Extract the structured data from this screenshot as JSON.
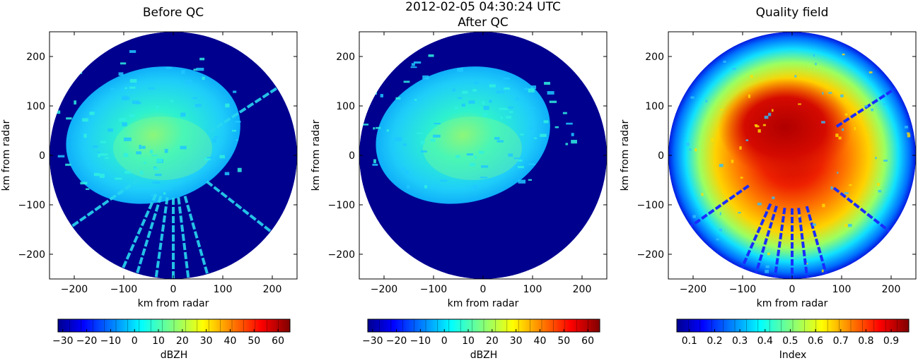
{
  "suptitle": "2012-02-05 04:30:24 UTC",
  "panels": [
    {
      "title": "Before QC",
      "xlabel": "km from radar",
      "ylabel": "km from radar",
      "xticks": [
        -200,
        -100,
        0,
        100,
        200
      ],
      "yticks": [
        200,
        100,
        0,
        -100,
        -200
      ],
      "xtick_labels": [
        "−200",
        "−100",
        "0",
        "100",
        "200"
      ],
      "ytick_labels": [
        "200",
        "100",
        "0",
        "−100",
        "−200"
      ],
      "colorbar": {
        "label": "dBZH",
        "ticks": [
          -30,
          -20,
          -10,
          0,
          10,
          20,
          30,
          40,
          50,
          60
        ],
        "tick_labels": [
          "−30",
          "−20",
          "−10",
          "0",
          "10",
          "20",
          "30",
          "40",
          "50",
          "60"
        ],
        "range": [
          -32,
          65
        ]
      }
    },
    {
      "title": "After QC",
      "xlabel": "km from radar",
      "ylabel": "km from radar",
      "xticks": [
        -200,
        -100,
        0,
        100,
        200
      ],
      "yticks": [
        200,
        100,
        0,
        -100,
        -200
      ],
      "xtick_labels": [
        "−200",
        "−100",
        "0",
        "100",
        "200"
      ],
      "ytick_labels": [
        "200",
        "100",
        "0",
        "−100",
        "−200"
      ],
      "colorbar": {
        "label": "dBZH",
        "ticks": [
          -30,
          -20,
          -10,
          0,
          10,
          20,
          30,
          40,
          50,
          60
        ],
        "tick_labels": [
          "−30",
          "−20",
          "−10",
          "0",
          "10",
          "20",
          "30",
          "40",
          "50",
          "60"
        ],
        "range": [
          -32,
          65
        ]
      }
    },
    {
      "title": "Quality field",
      "xlabel": "km from radar",
      "ylabel": "km from radar",
      "xticks": [
        -200,
        -100,
        0,
        100,
        200
      ],
      "yticks": [
        200,
        100,
        0,
        -100,
        -200
      ],
      "xtick_labels": [
        "−200",
        "−100",
        "0",
        "100",
        "200"
      ],
      "ytick_labels": [
        "200",
        "100",
        "0",
        "−100",
        "−200"
      ],
      "colorbar": {
        "label": "Index",
        "ticks": [
          0.1,
          0.2,
          0.3,
          0.4,
          0.5,
          0.6,
          0.7,
          0.8,
          0.9
        ],
        "tick_labels": [
          "0.1",
          "0.2",
          "0.3",
          "0.4",
          "0.5",
          "0.6",
          "0.7",
          "0.8",
          "0.9"
        ],
        "range": [
          0.05,
          0.97
        ]
      }
    }
  ],
  "chart_data": [
    {
      "type": "heatmap",
      "title": "Before QC",
      "xlabel": "km from radar",
      "ylabel": "km from radar",
      "xlim": [
        -250,
        250
      ],
      "ylim": [
        -250,
        250
      ],
      "radar_range_km": 250,
      "colormap": "jet",
      "colorbar_label": "dBZH",
      "colorbar_range": [
        -32,
        65
      ],
      "background_value": -32,
      "echo_typical_range": [
        0,
        20
      ],
      "spokes_azimuth_deg": [
        57,
        128,
        164,
        173,
        180,
        188,
        197,
        204,
        235
      ]
    },
    {
      "type": "heatmap",
      "title": "After QC",
      "xlabel": "km from radar",
      "ylabel": "km from radar",
      "xlim": [
        -250,
        250
      ],
      "ylim": [
        -250,
        250
      ],
      "radar_range_km": 250,
      "colormap": "jet",
      "colorbar_label": "dBZH",
      "colorbar_range": [
        -32,
        65
      ],
      "background_value": -32,
      "echo_typical_range": [
        0,
        20
      ]
    },
    {
      "type": "heatmap",
      "title": "Quality field",
      "xlabel": "km from radar",
      "ylabel": "km from radar",
      "xlim": [
        -250,
        250
      ],
      "ylim": [
        -250,
        250
      ],
      "radar_range_km": 250,
      "colormap": "jet",
      "colorbar_label": "Index",
      "colorbar_range": [
        0.05,
        0.97
      ],
      "radial_quality_profile": {
        "range_km": [
          0,
          60,
          120,
          170,
          210,
          250
        ],
        "index": [
          0.95,
          0.9,
          0.78,
          0.6,
          0.45,
          0.25
        ]
      },
      "spokes_azimuth_deg": [
        57,
        128,
        164,
        173,
        180,
        188,
        197,
        204,
        235
      ]
    }
  ]
}
